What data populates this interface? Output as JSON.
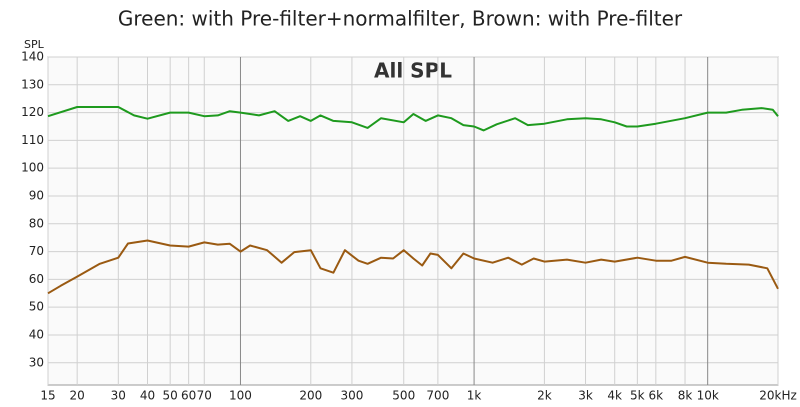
{
  "chart_data": {
    "type": "line",
    "title": "Green: with Pre-filter+normalfilter, Brown: with Pre-filter",
    "subtitle": "All SPL",
    "y_label": "SPL",
    "xscale": "log",
    "grid": true,
    "xlim": [
      15,
      20000
    ],
    "ylim": [
      22,
      140
    ],
    "yticks": [
      30,
      40,
      50,
      60,
      70,
      80,
      90,
      100,
      110,
      120,
      130,
      140
    ],
    "xticks": [
      15,
      20,
      30,
      40,
      50,
      60,
      70,
      100,
      200,
      300,
      500,
      700,
      {
        "value": 1000,
        "label": "1k"
      },
      {
        "value": 2000,
        "label": "2k"
      },
      {
        "value": 3000,
        "label": "3k"
      },
      {
        "value": 4000,
        "label": "4k"
      },
      {
        "value": 5000,
        "label": "5k"
      },
      {
        "value": 6000,
        "label": "6k"
      },
      {
        "value": 8000,
        "label": "8k"
      },
      {
        "value": 10000,
        "label": "10k"
      },
      {
        "value": 20000,
        "label": "20kHz"
      }
    ],
    "series": [
      {
        "name": "Green",
        "color": "#1e9a1e",
        "x": [
          15,
          20,
          30,
          35,
          40,
          50,
          60,
          70,
          80,
          90,
          100,
          120,
          140,
          160,
          180,
          200,
          220,
          250,
          300,
          350,
          400,
          500,
          550,
          620,
          700,
          800,
          900,
          1000,
          1100,
          1250,
          1500,
          1700,
          2000,
          2500,
          3000,
          3500,
          4000,
          4500,
          5000,
          6000,
          8000,
          10000,
          12000,
          14000,
          17000,
          19000,
          20000
        ],
        "values": [
          118.7,
          122,
          122,
          119,
          117.8,
          120,
          120,
          118.7,
          119,
          120.5,
          120,
          119,
          120.5,
          117,
          118.7,
          117,
          119,
          117,
          116.5,
          114.5,
          118,
          116.5,
          119.5,
          117,
          119,
          118,
          115.5,
          115,
          113.6,
          115.8,
          118,
          115.5,
          116,
          117.6,
          118,
          117.6,
          116.5,
          115,
          115,
          116,
          118,
          120,
          120,
          121,
          121.6,
          121,
          118.7
        ]
      },
      {
        "name": "Brown",
        "color": "#9a5a12",
        "x": [
          15,
          17,
          20,
          25,
          30,
          33,
          40,
          50,
          60,
          70,
          80,
          90,
          100,
          110,
          130,
          150,
          170,
          200,
          220,
          250,
          280,
          320,
          350,
          400,
          450,
          500,
          550,
          600,
          650,
          700,
          800,
          900,
          1000,
          1200,
          1400,
          1600,
          1800,
          2000,
          2500,
          3000,
          3500,
          4000,
          5000,
          6000,
          7000,
          8000,
          10000,
          12000,
          15000,
          18000,
          20000
        ],
        "values": [
          55,
          57.7,
          61,
          65.6,
          67.8,
          72.9,
          74,
          72.2,
          71.8,
          73.3,
          72.5,
          72.8,
          70,
          72.2,
          70.5,
          66,
          69.8,
          70.5,
          64,
          62.4,
          70.5,
          66.7,
          65.6,
          67.8,
          67.5,
          70.5,
          67.5,
          65,
          69.3,
          68.8,
          64,
          69.3,
          67.5,
          66,
          67.8,
          65.3,
          67.5,
          66.4,
          67.1,
          66,
          67.1,
          66.4,
          67.8,
          66.7,
          66.7,
          68.1,
          66,
          65.6,
          65.3,
          64,
          56.6
        ]
      }
    ]
  }
}
